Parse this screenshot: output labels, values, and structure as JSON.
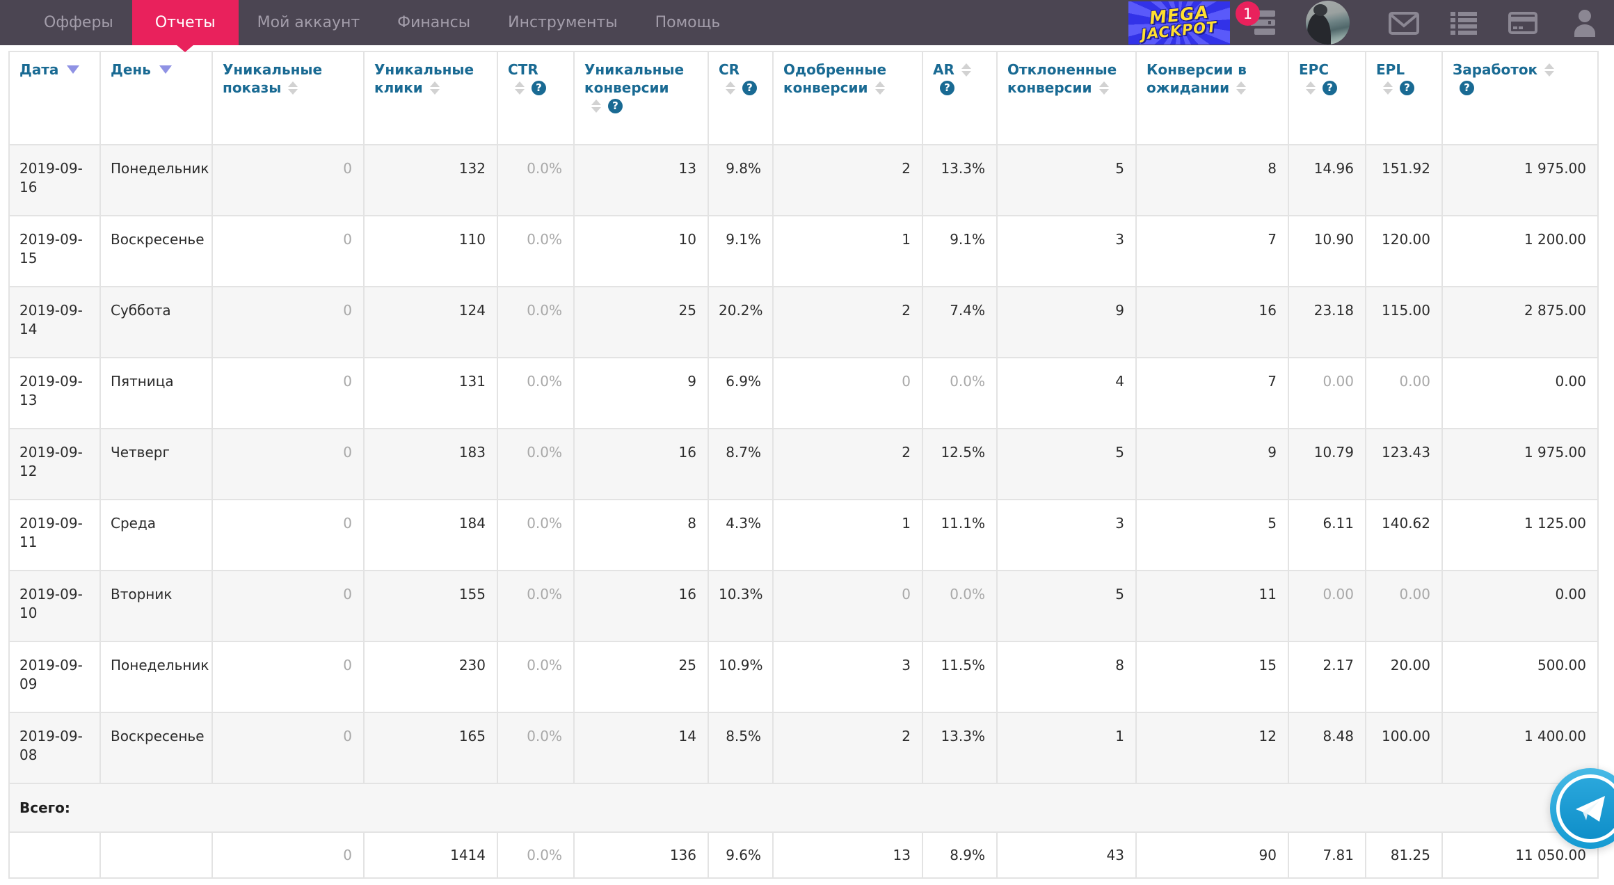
{
  "colors": {
    "accent": "#e9215c",
    "header_blue": "#196a93",
    "nav_bg": "#4b4552",
    "telegram_blue": "#1e9cd4"
  },
  "nav": {
    "items": [
      {
        "key": "offers",
        "label": "Офферы",
        "active": false
      },
      {
        "key": "reports",
        "label": "Отчеты",
        "active": true
      },
      {
        "key": "my-account",
        "label": "Мой аккаунт",
        "active": false
      },
      {
        "key": "finances",
        "label": "Финансы",
        "active": false
      },
      {
        "key": "tools",
        "label": "Инструменты",
        "active": false
      },
      {
        "key": "help",
        "label": "Помощь",
        "active": false
      }
    ],
    "banner": {
      "line1": "MEGA",
      "line2": "JACKPOT"
    },
    "notification_count": "1"
  },
  "table": {
    "help_glyph": "?",
    "columns": [
      {
        "key": "date",
        "lines": [
          "Дата"
        ],
        "sort": "active",
        "sort_line": 0,
        "help": false,
        "help_line": null,
        "align": "left"
      },
      {
        "key": "day",
        "lines": [
          "День"
        ],
        "sort": "active",
        "sort_line": 0,
        "help": false,
        "help_line": null,
        "align": "left"
      },
      {
        "key": "unique-impressions",
        "lines": [
          "Уникальные",
          "показы"
        ],
        "sort": "inactive",
        "sort_line": 1,
        "help": false,
        "help_line": null,
        "align": "right"
      },
      {
        "key": "unique-clicks",
        "lines": [
          "Уникальные",
          "клики"
        ],
        "sort": "inactive",
        "sort_line": 1,
        "help": false,
        "help_line": null,
        "align": "right"
      },
      {
        "key": "ctr",
        "lines": [
          "CTR",
          ""
        ],
        "sort": "inactive",
        "sort_line": 1,
        "help": true,
        "help_line": 1,
        "align": "right"
      },
      {
        "key": "unique-conversions",
        "lines": [
          "Уникальные",
          "конверсии",
          ""
        ],
        "sort": "inactive",
        "sort_line": 2,
        "help": true,
        "help_line": 2,
        "align": "right"
      },
      {
        "key": "cr",
        "lines": [
          "CR",
          ""
        ],
        "sort": "inactive",
        "sort_line": 1,
        "help": true,
        "help_line": 1,
        "align": "right"
      },
      {
        "key": "approved-conversions",
        "lines": [
          "Одобренные",
          "конверсии"
        ],
        "sort": "inactive",
        "sort_line": 1,
        "help": false,
        "help_line": null,
        "align": "right"
      },
      {
        "key": "ar",
        "lines": [
          "AR",
          ""
        ],
        "sort": "inactive",
        "sort_line": 0,
        "help": true,
        "help_line": 1,
        "align": "right"
      },
      {
        "key": "rejected-conversions",
        "lines": [
          "Отклоненные",
          "конверсии"
        ],
        "sort": "inactive",
        "sort_line": 1,
        "help": false,
        "help_line": null,
        "align": "right"
      },
      {
        "key": "pending-conversions",
        "lines": [
          "Конверсии в",
          "ожидании"
        ],
        "sort": "inactive",
        "sort_line": 1,
        "help": false,
        "help_line": null,
        "align": "right"
      },
      {
        "key": "epc",
        "lines": [
          "EPC",
          ""
        ],
        "sort": "inactive",
        "sort_line": 1,
        "help": true,
        "help_line": 1,
        "align": "right"
      },
      {
        "key": "epl",
        "lines": [
          "EPL",
          ""
        ],
        "sort": "inactive",
        "sort_line": 1,
        "help": true,
        "help_line": 1,
        "align": "right"
      },
      {
        "key": "earnings",
        "lines": [
          "Заработок",
          ""
        ],
        "sort": "inactive",
        "sort_line": 0,
        "help": true,
        "help_line": 1,
        "align": "right"
      }
    ],
    "rows": [
      [
        "2019-09-16",
        "Понедельник",
        "0",
        "132",
        "0.0%",
        "13",
        "9.8%",
        "2",
        "13.3%",
        "5",
        "8",
        "14.96",
        "151.92",
        "1 975.00"
      ],
      [
        "2019-09-15",
        "Воскресенье",
        "0",
        "110",
        "0.0%",
        "10",
        "9.1%",
        "1",
        "9.1%",
        "3",
        "7",
        "10.90",
        "120.00",
        "1 200.00"
      ],
      [
        "2019-09-14",
        "Суббота",
        "0",
        "124",
        "0.0%",
        "25",
        "20.2%",
        "2",
        "7.4%",
        "9",
        "16",
        "23.18",
        "115.00",
        "2 875.00"
      ],
      [
        "2019-09-13",
        "Пятница",
        "0",
        "131",
        "0.0%",
        "9",
        "6.9%",
        "0",
        "0.0%",
        "4",
        "7",
        "0.00",
        "0.00",
        "0.00"
      ],
      [
        "2019-09-12",
        "Четверг",
        "0",
        "183",
        "0.0%",
        "16",
        "8.7%",
        "2",
        "12.5%",
        "5",
        "9",
        "10.79",
        "123.43",
        "1 975.00"
      ],
      [
        "2019-09-11",
        "Среда",
        "0",
        "184",
        "0.0%",
        "8",
        "4.3%",
        "1",
        "11.1%",
        "3",
        "5",
        "6.11",
        "140.62",
        "1 125.00"
      ],
      [
        "2019-09-10",
        "Вторник",
        "0",
        "155",
        "0.0%",
        "16",
        "10.3%",
        "0",
        "0.0%",
        "5",
        "11",
        "0.00",
        "0.00",
        "0.00"
      ],
      [
        "2019-09-09",
        "Понедельник",
        "0",
        "230",
        "0.0%",
        "25",
        "10.9%",
        "3",
        "11.5%",
        "8",
        "15",
        "2.17",
        "20.00",
        "500.00"
      ],
      [
        "2019-09-08",
        "Воскресенье",
        "0",
        "165",
        "0.0%",
        "14",
        "8.5%",
        "2",
        "13.3%",
        "1",
        "12",
        "8.48",
        "100.00",
        "1 400.00"
      ]
    ],
    "footer": {
      "total_label": "Всего:",
      "totals": [
        "",
        "",
        "0",
        "1414",
        "0.0%",
        "136",
        "9.6%",
        "13",
        "8.9%",
        "43",
        "90",
        "7.81",
        "81.25",
        "11 050.00"
      ]
    }
  }
}
